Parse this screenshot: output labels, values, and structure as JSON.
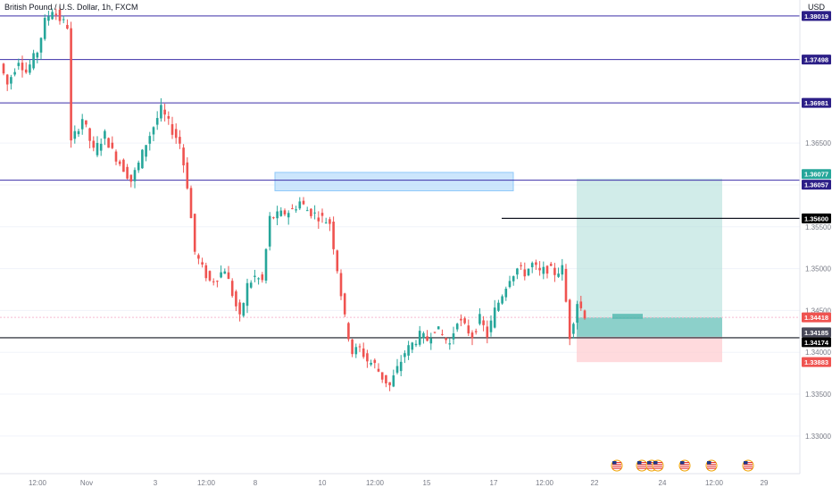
{
  "header": {
    "title": "British Pound / U.S. Dollar, 1h, FXCM",
    "currency": "USD"
  },
  "colors": {
    "up": "#26a69a",
    "down": "#ef5350",
    "hline": "#3b2fa8",
    "hline_label": "#2c1f87",
    "black_line": "#131722",
    "profit_zone": "#b2dfdb",
    "loss_zone": "#ffcdd2",
    "supply_zone": "#bbdefb",
    "current_price": "#ef5350",
    "tp_label": "#26a69a",
    "sl_label": "#ef5350"
  },
  "chart_data": {
    "type": "candlestick",
    "title": "British Pound / U.S. Dollar, 1h, FXCM",
    "y_unit": "USD",
    "ylim": [
      1.3255,
      1.3821
    ],
    "y_ticks": [
      1.33,
      1.335,
      1.34,
      1.345,
      1.35,
      1.355,
      1.36,
      1.365
    ],
    "y_tick_labels": [
      "1.33000",
      "1.33500",
      "1.34000",
      "1.34500",
      "1.35000",
      "1.35500",
      "1.36000",
      "1.36500"
    ],
    "x_tick_labels": [
      "12:00",
      "Nov",
      "3",
      "12:00",
      "8",
      "10",
      "12:00",
      "15",
      "17",
      "12:00",
      "22",
      "24",
      "12:00",
      "29"
    ],
    "price_path": [
      [
        0,
        1.3745
      ],
      [
        2,
        1.372
      ],
      [
        5,
        1.375
      ],
      [
        7,
        1.3735
      ],
      [
        10,
        1.376
      ],
      [
        12,
        1.3795
      ],
      [
        14,
        1.381
      ],
      [
        16,
        1.3798
      ],
      [
        18,
        1.379
      ],
      [
        19,
        1.365
      ],
      [
        22,
        1.368
      ],
      [
        25,
        1.364
      ],
      [
        28,
        1.366
      ],
      [
        30,
        1.364
      ],
      [
        33,
        1.362
      ],
      [
        35,
        1.3605
      ],
      [
        37,
        1.3625
      ],
      [
        39,
        1.365
      ],
      [
        41,
        1.367
      ],
      [
        43,
        1.369
      ],
      [
        46,
        1.3665
      ],
      [
        48,
        1.365
      ],
      [
        50,
        1.36
      ],
      [
        52,
        1.352
      ],
      [
        54,
        1.35
      ],
      [
        56,
        1.3485
      ],
      [
        58,
        1.349
      ],
      [
        60,
        1.35
      ],
      [
        62,
        1.347
      ],
      [
        64,
        1.344
      ],
      [
        66,
        1.348
      ],
      [
        68,
        1.349
      ],
      [
        70,
        1.3485
      ],
      [
        72,
        1.356
      ],
      [
        75,
        1.3565
      ],
      [
        78,
        1.357
      ],
      [
        80,
        1.358
      ],
      [
        82,
        1.357
      ],
      [
        84,
        1.3565
      ],
      [
        86,
        1.356
      ],
      [
        88,
        1.3555
      ],
      [
        90,
        1.35
      ],
      [
        92,
        1.344
      ],
      [
        94,
        1.34
      ],
      [
        96,
        1.3405
      ],
      [
        98,
        1.339
      ],
      [
        100,
        1.3385
      ],
      [
        102,
        1.337
      ],
      [
        104,
        1.336
      ],
      [
        106,
        1.338
      ],
      [
        108,
        1.34
      ],
      [
        110,
        1.341
      ],
      [
        112,
        1.342
      ],
      [
        114,
        1.3415
      ],
      [
        116,
        1.343
      ],
      [
        118,
        1.342
      ],
      [
        120,
        1.341
      ],
      [
        122,
        1.344
      ],
      [
        124,
        1.343
      ],
      [
        126,
        1.342
      ],
      [
        128,
        1.344
      ],
      [
        130,
        1.342
      ],
      [
        132,
        1.345
      ],
      [
        134,
        1.347
      ],
      [
        136,
        1.349
      ],
      [
        138,
        1.35
      ],
      [
        140,
        1.3495
      ],
      [
        142,
        1.3505
      ],
      [
        144,
        1.3495
      ],
      [
        146,
        1.35
      ],
      [
        148,
        1.3495
      ],
      [
        150,
        1.35
      ],
      [
        152,
        1.342
      ],
      [
        154,
        1.346
      ],
      [
        156,
        1.3445
      ]
    ],
    "horizontal_levels": [
      {
        "price": 1.38019,
        "label": "1.38019",
        "color": "#3b2fa8"
      },
      {
        "price": 1.37498,
        "label": "1.37498",
        "color": "#3b2fa8"
      },
      {
        "price": 1.36981,
        "label": "1.36981",
        "color": "#3b2fa8"
      },
      {
        "price": 1.36057,
        "label": "1.36057",
        "color": "#3b2fa8"
      },
      {
        "price": 1.356,
        "label": "1.35600",
        "color": "#131722",
        "partial": true
      },
      {
        "price": 1.34174,
        "label": "1.34174",
        "color": "#131722"
      }
    ],
    "position": {
      "type": "long",
      "entry": 1.34185,
      "target": 1.36077,
      "stop": 1.33883,
      "current": 1.34418
    },
    "supply_zone": {
      "top": 1.3615,
      "bottom": 1.3593
    }
  },
  "price_labels": [
    {
      "id": "lvl1",
      "text": "1.38019"
    },
    {
      "id": "lvl2",
      "text": "1.37498"
    },
    {
      "id": "lvl3",
      "text": "1.36981"
    },
    {
      "id": "tp",
      "text": "1.36077"
    },
    {
      "id": "lvl4",
      "text": "1.36057"
    },
    {
      "id": "blk1",
      "text": "1.35600"
    },
    {
      "id": "cur",
      "text": "1.34418"
    },
    {
      "id": "entry",
      "text": "1.34185"
    },
    {
      "id": "blk2",
      "text": "1.34174"
    },
    {
      "id": "sl",
      "text": "1.33883"
    }
  ],
  "event_icons": [
    "us-flag-icon",
    "us-flag-icon",
    "us-flag-icon",
    "us-flag-icon",
    "us-flag-icon",
    "us-flag-icon",
    "us-flag-icon"
  ]
}
